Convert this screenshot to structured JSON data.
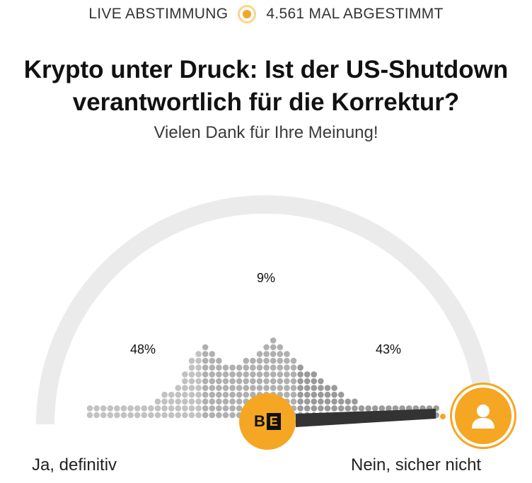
{
  "header": {
    "live_label": "LIVE ABSTIMMUNG",
    "votes_label": "4.561 MAL ABGESTIMMT"
  },
  "poll": {
    "title_line1": "Krypto unter Druck: Ist der US-Shutdown",
    "title_line2": "verantwortlich für die Korrektur?",
    "subtitle": "Vielen Dank für Ihre Meinung!"
  },
  "results": {
    "yes_pct": "48%",
    "neutral_pct": "9%",
    "no_pct": "43%"
  },
  "scale": {
    "left_label": "Ja, definitiv",
    "right_label": "Nein, sicher nicht"
  },
  "brand": {
    "logo_b": "B",
    "logo_e": "E"
  },
  "colors": {
    "accent": "#f5a623",
    "arc": "#ebebeb",
    "needle": "#333333"
  }
}
